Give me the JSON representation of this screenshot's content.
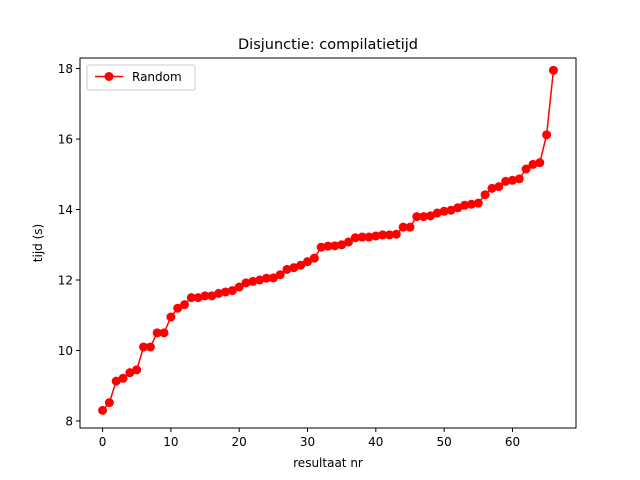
{
  "chart_data": {
    "type": "line",
    "title": "Disjunctie: compilatietijd",
    "xlabel": "resultaat nr",
    "ylabel": "tijd (s)",
    "xlim": [
      -3.3,
      69.3
    ],
    "ylim": [
      7.8,
      18.3
    ],
    "xticks": [
      0,
      10,
      20,
      30,
      40,
      50,
      60
    ],
    "yticks": [
      8,
      10,
      12,
      14,
      16,
      18
    ],
    "grid": false,
    "legend_position": "top-left",
    "series": [
      {
        "name": "Random",
        "color": "#ff0000",
        "marker": "circle",
        "x": [
          0,
          1,
          2,
          3,
          4,
          5,
          6,
          7,
          8,
          9,
          10,
          11,
          12,
          13,
          14,
          15,
          16,
          17,
          18,
          19,
          20,
          21,
          22,
          23,
          24,
          25,
          26,
          27,
          28,
          29,
          30,
          31,
          32,
          33,
          34,
          35,
          36,
          37,
          38,
          39,
          40,
          41,
          42,
          43,
          44,
          45,
          46,
          47,
          48,
          49,
          50,
          51,
          52,
          53,
          54,
          55,
          56,
          57,
          58,
          59,
          60,
          61,
          62,
          63,
          64,
          65,
          66
        ],
        "y": [
          8.3,
          8.52,
          9.13,
          9.21,
          9.37,
          9.45,
          10.1,
          10.1,
          10.5,
          10.5,
          10.95,
          11.2,
          11.3,
          11.5,
          11.5,
          11.55,
          11.55,
          11.62,
          11.66,
          11.7,
          11.8,
          11.92,
          11.96,
          12.0,
          12.05,
          12.06,
          12.15,
          12.3,
          12.35,
          12.42,
          12.52,
          12.62,
          12.93,
          12.96,
          12.97,
          13.0,
          13.08,
          13.2,
          13.22,
          13.22,
          13.25,
          13.28,
          13.28,
          13.3,
          13.5,
          13.5,
          13.8,
          13.8,
          13.82,
          13.9,
          13.95,
          13.98,
          14.05,
          14.12,
          14.15,
          14.18,
          14.42,
          14.6,
          14.65,
          14.8,
          14.83,
          14.87,
          15.15,
          15.28,
          15.33,
          16.12,
          17.95
        ]
      }
    ]
  }
}
